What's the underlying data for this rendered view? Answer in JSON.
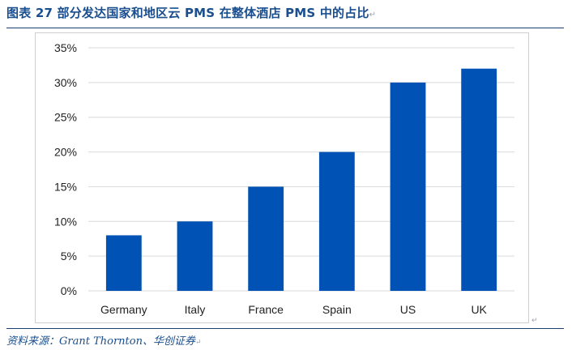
{
  "header": {
    "title": "图表 27   部分发达国家和地区云 PMS 在整体酒店 PMS  中的占比",
    "mark": "↵"
  },
  "footer": {
    "source": "资料来源：Grant Thornton、华创证券",
    "mark": "↵"
  },
  "chart_data": {
    "type": "bar",
    "title": "",
    "xlabel": "",
    "ylabel": "",
    "categories": [
      "Germany",
      "Italy",
      "France",
      "Spain",
      "US",
      "UK"
    ],
    "values": [
      0.08,
      0.1,
      0.15,
      0.2,
      0.3,
      0.32
    ],
    "ylim": [
      0,
      0.35
    ],
    "yticks": [
      0,
      0.05,
      0.1,
      0.15,
      0.2,
      0.25,
      0.3,
      0.35
    ],
    "ytick_labels": [
      "0%",
      "5%",
      "10%",
      "15%",
      "20%",
      "25%",
      "30%",
      "35%"
    ],
    "grid": true,
    "legend": "none",
    "bar_color": "#0053B5",
    "grid_color": "#d9d9d9"
  }
}
